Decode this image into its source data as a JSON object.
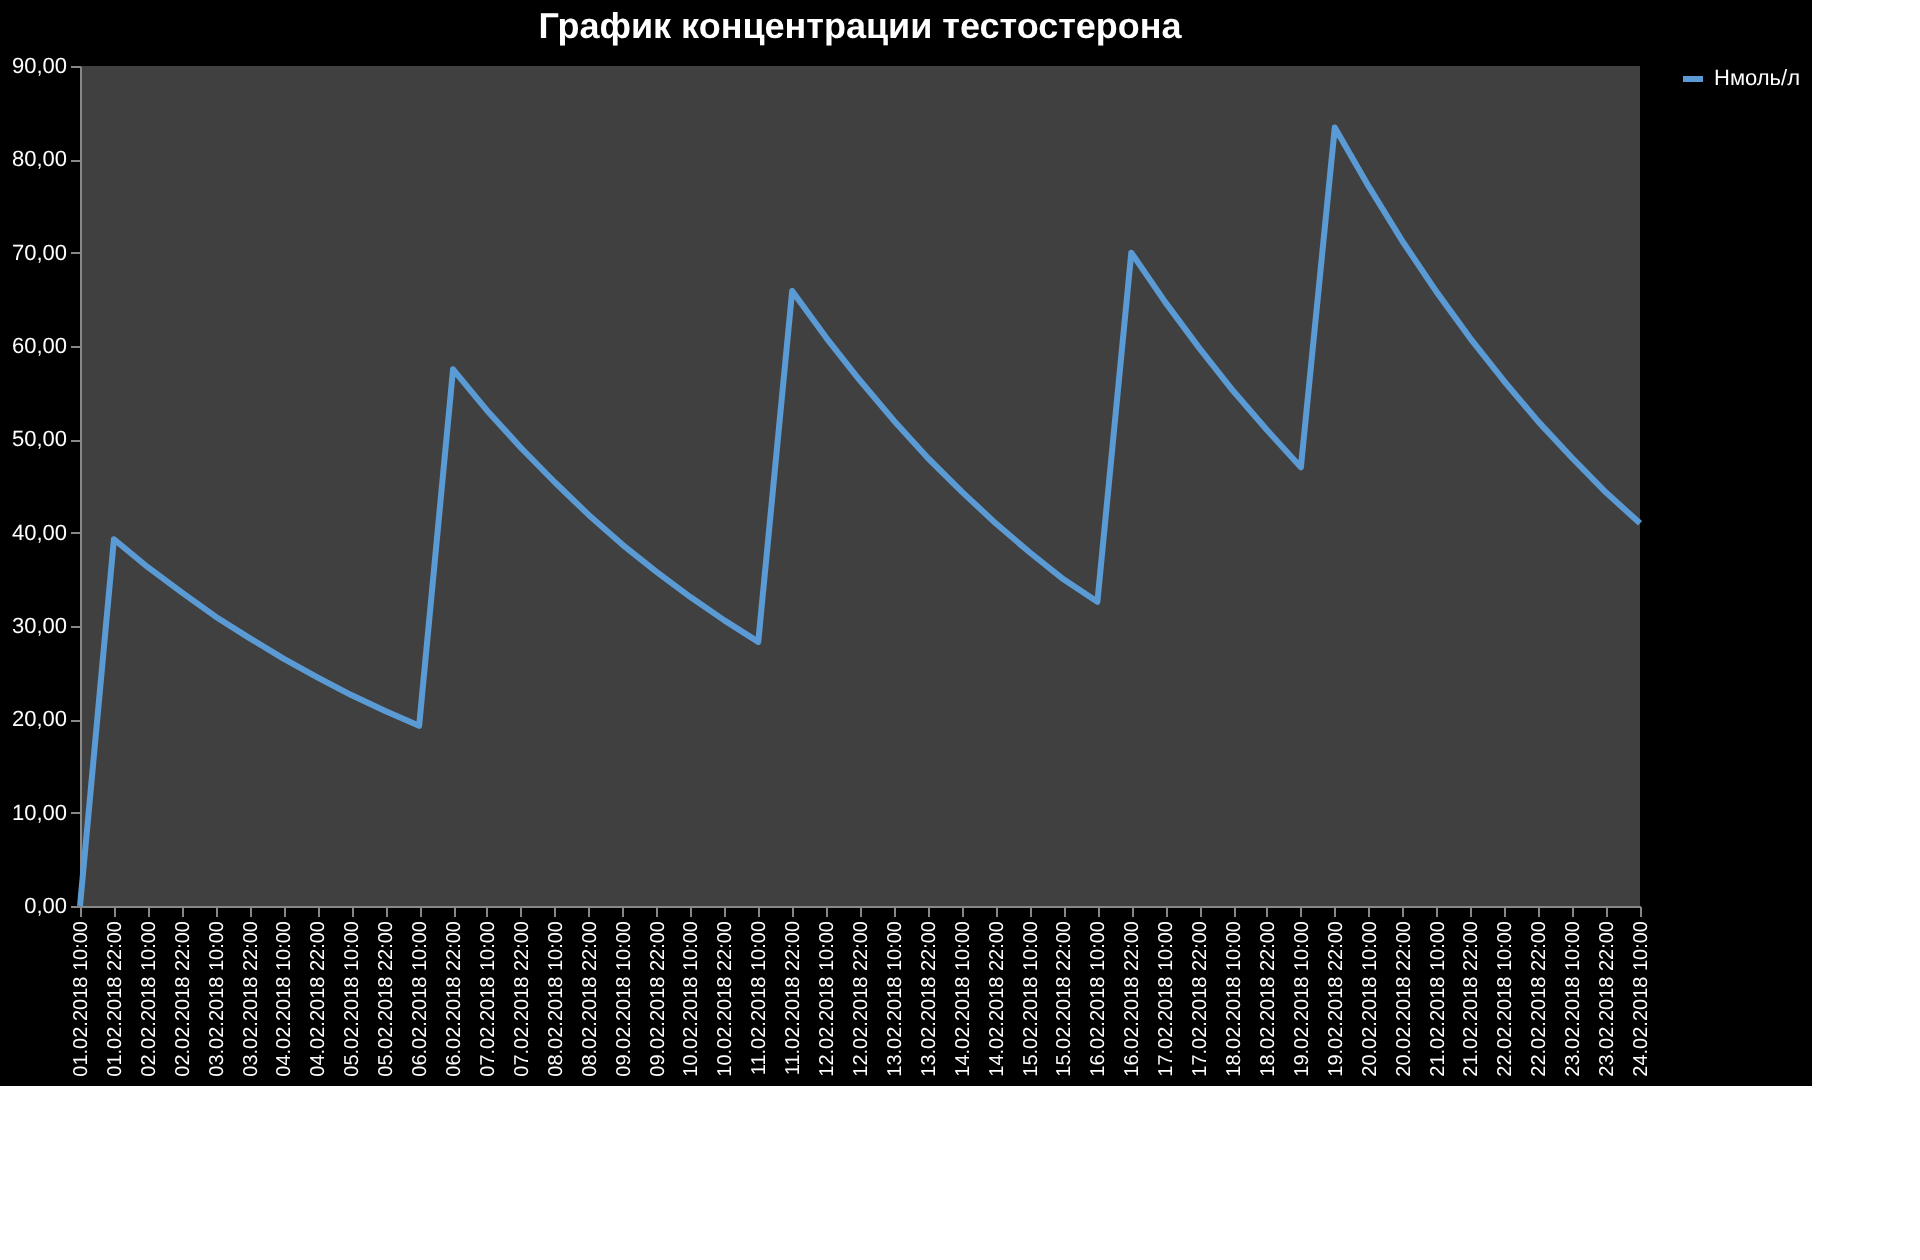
{
  "chart_data": {
    "type": "line",
    "title": "График концентрации тестостерона",
    "categories": [
      "01.02.2018 10:00",
      "01.02.2018 22:00",
      "02.02.2018 10:00",
      "02.02.2018 22:00",
      "03.02.2018 10:00",
      "03.02.2018 22:00",
      "04.02.2018 10:00",
      "04.02.2018 22:00",
      "05.02.2018 10:00",
      "05.02.2018 22:00",
      "06.02.2018 10:00",
      "06.02.2018 22:00",
      "07.02.2018 10:00",
      "07.02.2018 22:00",
      "08.02.2018 10:00",
      "08.02.2018 22:00",
      "09.02.2018 10:00",
      "09.02.2018 22:00",
      "10.02.2018 10:00",
      "10.02.2018 22:00",
      "11.02.2018 10:00",
      "11.02.2018 22:00",
      "12.02.2018 10:00",
      "12.02.2018 22:00",
      "13.02.2018 10:00",
      "13.02.2018 22:00",
      "14.02.2018 10:00",
      "14.02.2018 22:00",
      "15.02.2018 10:00",
      "15.02.2018 22:00",
      "16.02.2018 10:00",
      "16.02.2018 22:00",
      "17.02.2018 10:00",
      "17.02.2018 22:00",
      "18.02.2018 10:00",
      "18.02.2018 22:00",
      "19.02.2018 10:00",
      "19.02.2018 22:00",
      "20.02.2018 10:00",
      "20.02.2018 22:00",
      "21.02.2018 10:00",
      "21.02.2018 22:00",
      "22.02.2018 10:00",
      "22.02.2018 22:00",
      "23.02.2018 10:00",
      "23.02.2018 22:00",
      "24.02.2018 10:00"
    ],
    "series": [
      {
        "name": "Нмоль/л",
        "color": "#5b9bd5",
        "values": [
          0,
          39.3,
          36.3,
          33.6,
          31.0,
          28.7,
          26.5,
          24.5,
          22.6,
          20.9,
          19.3,
          57.5,
          53.1,
          49.1,
          45.4,
          41.9,
          38.7,
          35.8,
          33.1,
          30.6,
          28.3,
          65.9,
          60.9,
          56.3,
          52.0,
          48.0,
          44.4,
          41.0,
          37.9,
          35.0,
          32.6,
          70.0,
          64.7,
          59.8,
          55.2,
          51.0,
          47.0,
          83.4,
          77.1,
          71.2,
          65.8,
          60.8,
          56.2,
          51.9,
          48.0,
          44.3,
          41.0
        ]
      }
    ],
    "ylim": [
      0,
      90
    ],
    "yticks": [
      {
        "value": 0,
        "label": "0,00"
      },
      {
        "value": 10,
        "label": "10,00"
      },
      {
        "value": 20,
        "label": "20,00"
      },
      {
        "value": 30,
        "label": "30,00"
      },
      {
        "value": 40,
        "label": "40,00"
      },
      {
        "value": 50,
        "label": "50,00"
      },
      {
        "value": 60,
        "label": "60,00"
      },
      {
        "value": 70,
        "label": "70,00"
      },
      {
        "value": 80,
        "label": "80,00"
      },
      {
        "value": 90,
        "label": "90,00"
      }
    ],
    "grid": false,
    "legend": "right",
    "marker": "none",
    "line_style": "solid"
  }
}
